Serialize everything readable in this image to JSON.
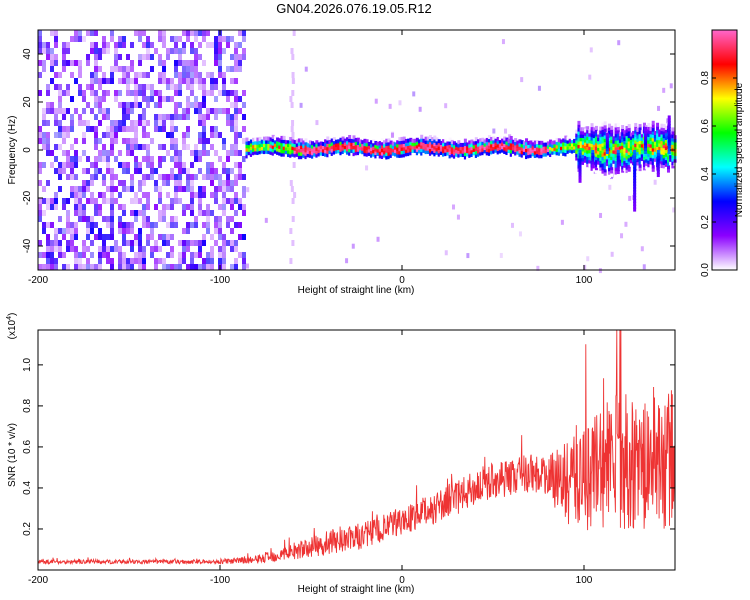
{
  "title": "GN04.2026.076.19.05.R12",
  "chart_data": [
    {
      "type": "heatmap",
      "name": "spectrogram",
      "xlabel": "Height of straight line (km)",
      "ylabel": "Frequency (Hz)",
      "xlim": [
        -200,
        150
      ],
      "ylim": [
        -50,
        50
      ],
      "xticks": [
        -200,
        -100,
        0,
        100
      ],
      "yticks": [
        -40,
        -20,
        0,
        20,
        40
      ],
      "colorbar": {
        "label": "Normalized spectral amplitude",
        "range": [
          0.0,
          1.0
        ],
        "ticks": [
          0.0,
          0.2,
          0.4,
          0.6,
          0.8
        ],
        "tick_labels": [
          "0.0",
          "0.2",
          "0.4",
          "0.6",
          "0.8"
        ],
        "colormap": [
          "#ffffff",
          "#8b00ff",
          "#0000ff",
          "#00ffff",
          "#00ff00",
          "#ffff00",
          "#ff0000",
          "#ff66cc"
        ]
      },
      "regions": [
        {
          "x": [
            -200,
            -86
          ],
          "freq": [
            -50,
            50
          ],
          "amplitude": "0.1-0.3",
          "description": "broadband noise"
        },
        {
          "x": [
            -62,
            -60
          ],
          "freq": [
            -50,
            50
          ],
          "amplitude": "0.05-0.15",
          "description": "faint vertical streak"
        },
        {
          "x": [
            -86,
            150
          ],
          "freq": [
            -3,
            5
          ],
          "amplitude": "0.4-1.0",
          "description": "narrow band near 0-2 Hz"
        },
        {
          "x": [
            95,
            150
          ],
          "freq": [
            -20,
            20
          ],
          "amplitude": "0.1-0.5",
          "description": "spreading spikes"
        }
      ]
    },
    {
      "type": "line",
      "name": "snr",
      "xlabel": "Height of straight line (km)",
      "ylabel": "SNR (10 * v/v)",
      "multiplier": "(x10",
      "multiplier_exp": "4",
      "xlim": [
        -200,
        150
      ],
      "ylim": [
        0,
        1.17
      ],
      "xticks": [
        -200,
        -100,
        0,
        100
      ],
      "yticks": [
        0.2,
        0.4,
        0.6,
        0.8,
        1.0
      ],
      "yticklabels": [
        "0.2",
        "0.4",
        "0.6",
        "0.8",
        "1.0"
      ],
      "color": "#ee3333",
      "series": [
        {
          "name": "SNR",
          "x": [
            -200,
            -150,
            -100,
            -80,
            -70,
            -60,
            -50,
            -40,
            -30,
            -20,
            -10,
            0,
            10,
            20,
            30,
            40,
            50,
            60,
            70,
            80,
            90,
            100,
            110,
            120,
            130,
            140,
            150
          ],
          "y": [
            0.04,
            0.04,
            0.04,
            0.05,
            0.07,
            0.09,
            0.11,
            0.13,
            0.15,
            0.17,
            0.2,
            0.24,
            0.27,
            0.31,
            0.35,
            0.4,
            0.44,
            0.45,
            0.48,
            0.45,
            0.43,
            0.47,
            0.5,
            0.55,
            0.5,
            0.52,
            0.55
          ],
          "noise_amplitude": [
            0.01,
            0.01,
            0.01,
            0.02,
            0.03,
            0.04,
            0.05,
            0.06,
            0.06,
            0.07,
            0.07,
            0.07,
            0.07,
            0.08,
            0.08,
            0.09,
            0.09,
            0.09,
            0.1,
            0.1,
            0.2,
            0.3,
            0.32,
            0.36,
            0.3,
            0.33,
            0.35
          ]
        }
      ]
    }
  ]
}
